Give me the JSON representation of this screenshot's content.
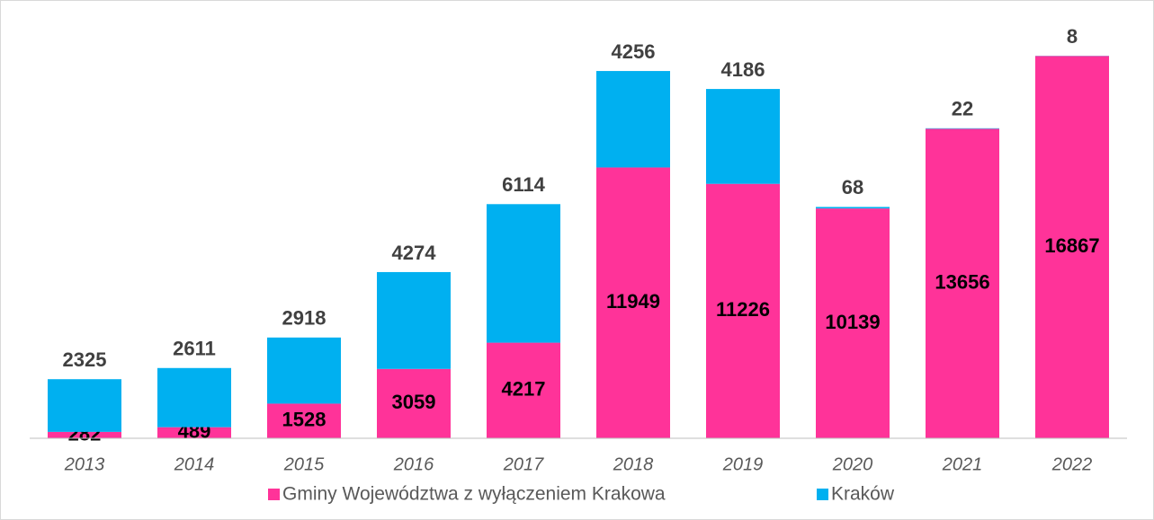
{
  "chart_data": {
    "type": "stacked-bar",
    "categories": [
      "2013",
      "2014",
      "2015",
      "2016",
      "2017",
      "2018",
      "2019",
      "2020",
      "2021",
      "2022"
    ],
    "series": [
      {
        "name": "Gminy Województwa z wyłączeniem Krakowa",
        "color": "#ff3399",
        "values": [
          282,
          489,
          1528,
          3059,
          4217,
          11949,
          11226,
          10139,
          13656,
          16867
        ]
      },
      {
        "name": "Kraków",
        "color": "#00b0f0",
        "values": [
          2325,
          2611,
          2918,
          4274,
          6114,
          4256,
          4186,
          68,
          22,
          8
        ]
      }
    ],
    "ylim": [
      0,
      17000
    ],
    "legend": "bottom"
  }
}
